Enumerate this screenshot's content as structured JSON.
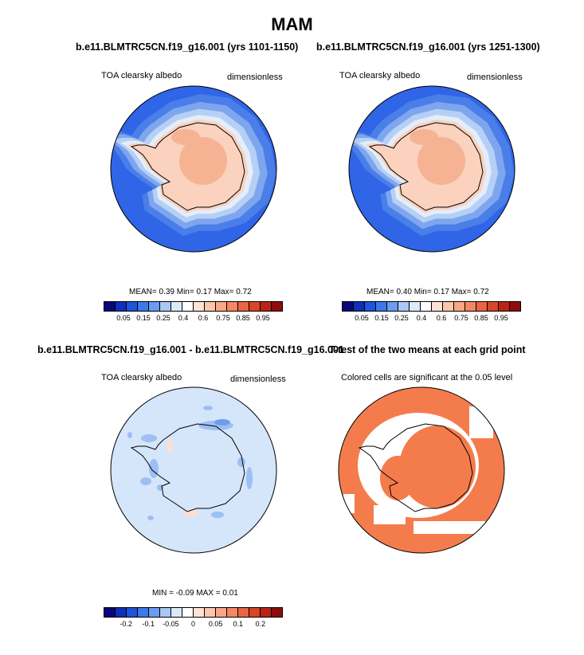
{
  "title": "MAM",
  "panels": [
    {
      "id": "case1",
      "title": "b.e11.BLMTRC5CN.f19_g16.001 (yrs 1101-1150)",
      "variable": "TOA clearsky albedo",
      "units": "dimensionless",
      "stats": "MEAN=   0.39  Min=   0.17  Max=   0.72"
    },
    {
      "id": "case2",
      "title": "b.e11.BLMTRC5CN.f19_g16.001 (yrs 1251-1300)",
      "variable": "TOA clearsky albedo",
      "units": "dimensionless",
      "stats": "MEAN=   0.40  Min=   0.17  Max=   0.72"
    },
    {
      "id": "diff",
      "title": "b.e11.BLMTRC5CN.f19_g16.001 - b.e11.BLMTRC5CN.f19_g16.001",
      "variable": "TOA clearsky albedo",
      "units": "dimensionless",
      "stats": "MIN =  -0.09 MAX =   0.01"
    },
    {
      "id": "ttest",
      "title": "T-test of the two means at each grid point",
      "variable": "Colored cells are significant at the 0.05 level",
      "units": "",
      "stats": ""
    }
  ],
  "colorbar_main": {
    "colors": [
      "#08087a",
      "#0f2fb8",
      "#1e55dc",
      "#3c7ae8",
      "#6a9cf0",
      "#a9c8f4",
      "#dbe9fb",
      "#ffffff",
      "#fde3d6",
      "#fcc6ad",
      "#f8a885",
      "#f38862",
      "#ea6541",
      "#d8452a",
      "#bb2415",
      "#8e0c0c"
    ],
    "ticks": [
      "0.05",
      "0.15",
      "0.25",
      "0.4",
      "0.6",
      "0.75",
      "0.85",
      "0.95"
    ]
  },
  "colorbar_diff": {
    "colors": [
      "#08087a",
      "#0f2fb8",
      "#1e55dc",
      "#3c7ae8",
      "#6a9cf0",
      "#a9c8f4",
      "#dbe9fb",
      "#ffffff",
      "#fde3d6",
      "#fcc6ad",
      "#f8a885",
      "#f38862",
      "#ea6541",
      "#d8452a",
      "#bb2415",
      "#8e0c0c"
    ],
    "ticks": [
      "-0.2",
      "-0.1",
      "-0.05",
      "0",
      "0.05",
      "0.1",
      "0.2"
    ]
  },
  "map_colors": {
    "ocean_outer": "#2f65e6",
    "band1": "#4a7ee8",
    "band2": "#7ea6ef",
    "band3": "#b6cff5",
    "band4": "#e3eefc",
    "ice": "#fad2be",
    "ice_high": "#f6b394",
    "diff_bg": "#d5e6fb",
    "diff_neg": "#9ebff2",
    "diff_neg2": "#6f9ced",
    "diff_pos": "#fbe0d2",
    "sig": "#f47c4c",
    "coast": "#000000"
  }
}
